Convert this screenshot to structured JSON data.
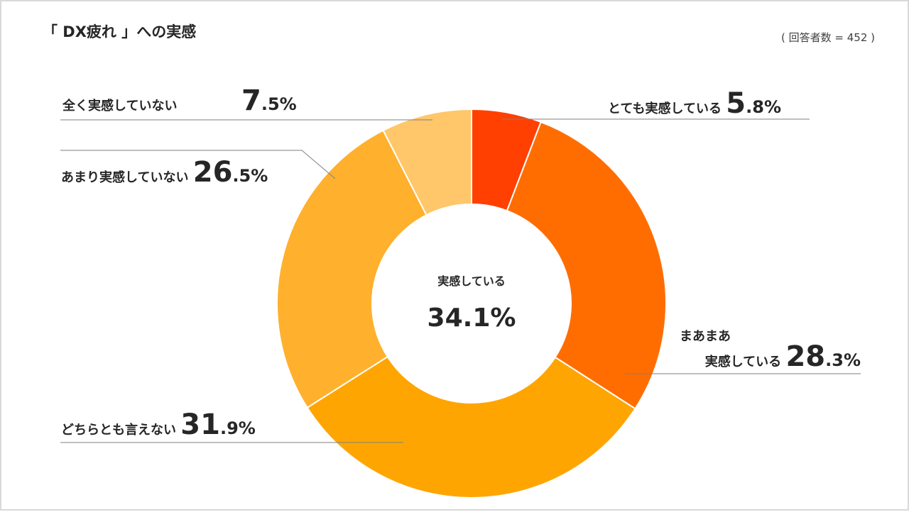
{
  "title": "「 DX疲れ 」への実感",
  "respondents": "( 回答者数 = 452 )",
  "center": {
    "label": "実感している",
    "value": "34.1%"
  },
  "chart_data": {
    "type": "pie",
    "title": "「 DX疲れ 」への実感",
    "slices": [
      {
        "label": "とても実感している",
        "value": 5.8,
        "color": "#FF4000"
      },
      {
        "label": "まあまあ実感している",
        "value": 28.3,
        "color": "#FF6D00"
      },
      {
        "label": "どちらとも言えない",
        "value": 31.9,
        "color": "#FFA502"
      },
      {
        "label": "あまり実感していない",
        "value": 26.5,
        "color": "#FFB02C"
      },
      {
        "label": "全く実感していない",
        "value": 7.5,
        "color": "#FFC76A"
      }
    ],
    "start_angle": "top",
    "direction": "clockwise",
    "donut": true
  },
  "labels": [
    {
      "text": "とても実感している",
      "int": "5",
      "dec": ".8%"
    },
    {
      "line1": "まあまあ",
      "line2": "実感している",
      "int": "28",
      "dec": ".3%"
    },
    {
      "text": "どちらとも言えない",
      "int": "31",
      "dec": ".9%"
    },
    {
      "text": "あまり実感していない",
      "int": "26",
      "dec": ".5%"
    },
    {
      "text": "全く実感していない",
      "int": "7",
      "dec": ".5%"
    }
  ]
}
